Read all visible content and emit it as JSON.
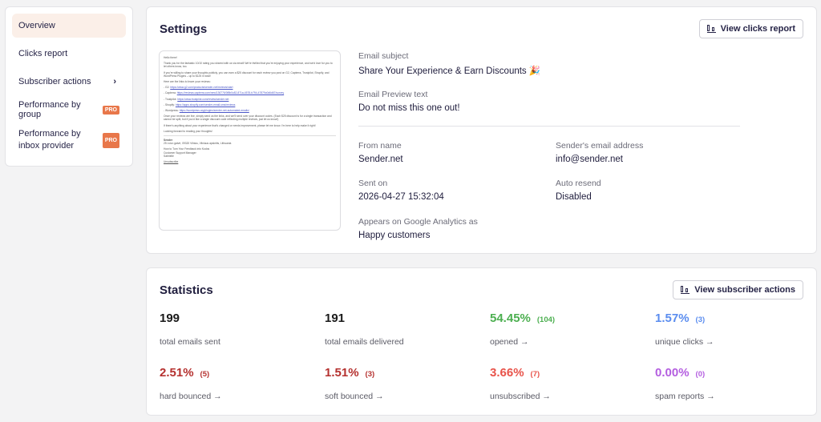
{
  "sidebar": {
    "items": [
      {
        "label": "Overview",
        "active": true
      },
      {
        "label": "Clicks report"
      },
      {
        "label": "Subscriber actions",
        "chevron": "›"
      },
      {
        "label": "Performance by group",
        "badge": "PRO"
      },
      {
        "label": "Performance by inbox provider",
        "badge": "PRO"
      }
    ]
  },
  "settings": {
    "title": "Settings",
    "button": "View clicks report",
    "preview": {
      "greeting": "Hello there!",
      "p1": "Thank you for the fantastic 10/10 rating you shared with us via email! We're thrilled that you're enjoying your experience, and we'd love for you to let others know, too.",
      "p2": "If you're willing to share your thoughts publicly, you can earn a $25 discount for each review you post on G2, Capterra, Trustpilot, Shopify, and WordPress Plugins – up to $125 in total!",
      "p3": "Here are the links to leave your reviews:",
      "links": [
        {
          "name": "- G2:",
          "url": "https://www.g2.com/products/sender-net/reviews/start"
        },
        {
          "name": "- Capterra:",
          "url": "https://reviews.capterra.com/new/136776/0f8b0c82-871a-4578-b794-47879c0d6d67/survey"
        },
        {
          "name": "- Trustpilot:",
          "url": "https://www.trustpilot.com/review/sender.net"
        },
        {
          "name": "- Shopify:",
          "url": "https://apps.shopify.com/sender-email-sms/reviews"
        },
        {
          "name": "- Wordpress:",
          "url": "https://wordpress.org/plugins/sender-net-automated-emails/"
        }
      ],
      "p4": "Once your reviews are live, simply send us the links, and we'll send over your discount codes. (Each $25 discount is for a single transaction and cannot be split, but if you'd like a single discount code reflecting multiple reviews, just let us know!)",
      "p5": "If there's anything about your experience that's changed or needs improvement, please let me know. I'm here to help make it right!",
      "p6": "Looking forward to reading your thoughts!",
      "company": "Sender",
      "address": "25 Lvivo gatvė, 09320 Vilnius, Vilniaus apskritis, Lithuania",
      "sig1": "How to Turn Your Feedback into Kudos",
      "sig2": "Customer Support Manager",
      "sig3": "Sabrielle",
      "unsub": "Unsubscribe"
    },
    "fields": {
      "subject_label": "Email subject",
      "subject": "Share Your Experience & Earn Discounts 🎉",
      "preview_label": "Email Preview text",
      "preview_text": "Do not miss this one out!",
      "from_label": "From name",
      "from": "Sender.net",
      "sender_email_label": "Sender's email address",
      "sender_email": "info@sender.net",
      "sent_label": "Sent on",
      "sent": "2026-04-27 15:32:04",
      "resend_label": "Auto resend",
      "resend": "Disabled",
      "ga_label": "Appears on Google Analytics as",
      "ga": "Happy customers"
    }
  },
  "statistics": {
    "title": "Statistics",
    "button": "View subscriber actions",
    "arrow": "→",
    "items": [
      {
        "value": "199",
        "count": "",
        "label": "total emails sent",
        "color": "#1a1a1a",
        "link": false
      },
      {
        "value": "191",
        "count": "",
        "label": "total emails delivered",
        "color": "#1a1a1a",
        "link": false
      },
      {
        "value": "54.45%",
        "count": "(104)",
        "label": "opened",
        "color": "#4caf50",
        "link": true
      },
      {
        "value": "1.57%",
        "count": "(3)",
        "label": "unique clicks",
        "color": "#5b8def",
        "link": true
      },
      {
        "value": "2.51%",
        "count": "(5)",
        "label": "hard bounced",
        "color": "#b5312f",
        "link": true
      },
      {
        "value": "1.51%",
        "count": "(3)",
        "label": "soft bounced",
        "color": "#b5312f",
        "link": true
      },
      {
        "value": "3.66%",
        "count": "(7)",
        "label": "unsubscribed",
        "color": "#e8534a",
        "link": true
      },
      {
        "value": "0.00%",
        "count": "(0)",
        "label": "spam reports",
        "color": "#b45ee0",
        "link": true
      }
    ]
  }
}
